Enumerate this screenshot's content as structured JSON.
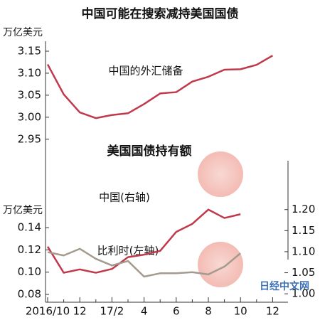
{
  "chart_data": [
    {
      "type": "line",
      "title": "中国可能在搜索减持美国国债",
      "y_label": "万亿美元",
      "ylim": [
        2.94,
        3.165
      ],
      "yticks": [
        3.15,
        {
          "value": 3.1,
          "label": "3.10"
        },
        3.05,
        {
          "value": 3.0,
          "label": "3.00"
        },
        2.95
      ],
      "series": [
        {
          "name": "中国的外汇储备",
          "color": "#c0394b",
          "values": [
            3.12,
            3.052,
            3.011,
            2.998,
            3.005,
            3.009,
            3.03,
            3.054,
            3.057,
            3.081,
            3.092,
            3.108,
            3.109,
            3.119,
            3.14
          ]
        }
      ]
    },
    {
      "type": "line",
      "title": "美国国债持有额",
      "y_label": "万亿美元",
      "categories": [
        "2016/10",
        null,
        "12",
        null,
        "17/2",
        null,
        "4",
        null,
        "6",
        null,
        "8",
        null,
        "10",
        null,
        "12"
      ],
      "ylim": [
        0.073,
        0.16
      ],
      "yticks": [
        0.14,
        0.12,
        {
          "value": 0.1,
          "label": "0.10"
        },
        0.08
      ],
      "y2lim": [
        0.98,
        1.21
      ],
      "y2ticks": [
        {
          "value": 1.2,
          "label": "1.20"
        },
        1.15,
        {
          "value": 1.1,
          "label": "1.10"
        },
        1.05,
        {
          "value": 1.0,
          "label": "1.00"
        }
      ],
      "series": [
        {
          "name": "中国(右轴)",
          "color": "#c0394b",
          "axis": "y2",
          "values": [
            1.112,
            1.05,
            1.058,
            1.05,
            1.059,
            1.087,
            1.093,
            1.102,
            1.147,
            1.166,
            1.2,
            1.18,
            1.189,
            null,
            null
          ]
        },
        {
          "name": "比利时(左轴)",
          "color": "#a49a8d",
          "values": [
            0.118,
            0.115,
            0.121,
            0.112,
            0.106,
            0.11,
            0.096,
            0.099,
            0.099,
            0.1,
            0.098,
            0.105,
            0.117,
            null,
            null
          ]
        }
      ],
      "watermark": "日经中文网"
    }
  ]
}
